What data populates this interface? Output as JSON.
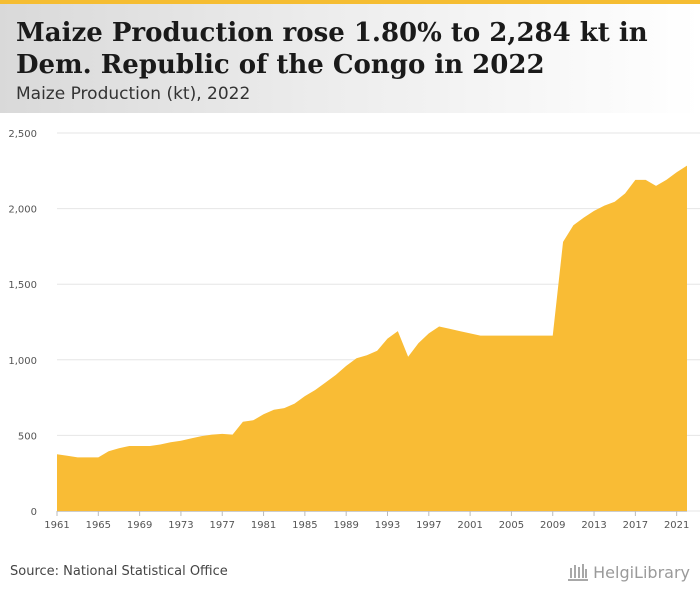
{
  "header": {
    "title": "Maize Production rose 1.80% to 2,284 kt in Dem. Republic of the Congo in 2022",
    "subtitle": "Maize Production (kt), 2022"
  },
  "footer": {
    "source": "Source: National Statistical Office",
    "brand": "HelgiLibrary"
  },
  "colors": {
    "area": "#f9bc35",
    "grid": "#e6e6e6",
    "axis_text": "#555555",
    "accent_bar": "#f5bd32"
  },
  "chart_data": {
    "type": "area",
    "title": "Maize Production rose 1.80% to 2,284 kt in Dem. Republic of the Congo in 2022",
    "subtitle": "Maize Production (kt), 2022",
    "xlabel": "",
    "ylabel": "",
    "ylim": [
      0,
      2500
    ],
    "yticks": [
      0,
      500,
      1000,
      1500,
      2000,
      2500
    ],
    "ytick_labels": [
      "0",
      "500",
      "1,000",
      "1,500",
      "2,000",
      "2,500"
    ],
    "xlim": [
      1961,
      2022
    ],
    "xticks": [
      1961,
      1965,
      1969,
      1973,
      1977,
      1981,
      1985,
      1989,
      1993,
      1997,
      2001,
      2005,
      2009,
      2013,
      2017,
      2021
    ],
    "xtick_labels": [
      "1961",
      "1965",
      "1969",
      "1973",
      "1977",
      "1981",
      "1985",
      "1989",
      "1993",
      "1997",
      "2001",
      "2005",
      "2009",
      "2013",
      "2017",
      "2021"
    ],
    "grid": true,
    "legend": "none",
    "series": [
      {
        "x": [
          1961,
          1962,
          1963,
          1964,
          1965,
          1966,
          1967,
          1968,
          1969,
          1970,
          1971,
          1972,
          1973,
          1974,
          1975,
          1976,
          1977,
          1978,
          1979,
          1980,
          1981,
          1982,
          1983,
          1984,
          1985,
          1986,
          1987,
          1988,
          1989,
          1990,
          1991,
          1992,
          1993,
          1994,
          1995,
          1996,
          1997,
          1998,
          1999,
          2000,
          2001,
          2002,
          2003,
          2004,
          2005,
          2006,
          2007,
          2008,
          2009,
          2010,
          2011,
          2012,
          2013,
          2014,
          2015,
          2016,
          2017,
          2018,
          2019,
          2020,
          2021,
          2022
        ],
        "values": [
          375,
          365,
          355,
          355,
          355,
          395,
          415,
          430,
          430,
          430,
          440,
          455,
          465,
          480,
          495,
          505,
          510,
          505,
          590,
          600,
          640,
          670,
          680,
          710,
          760,
          800,
          850,
          900,
          960,
          1010,
          1030,
          1060,
          1140,
          1190,
          1020,
          1110,
          1175,
          1220,
          1205,
          1190,
          1175,
          1160,
          1160,
          1160,
          1160,
          1160,
          1160,
          1160,
          1160,
          1780,
          1890,
          1940,
          1985,
          2020,
          2045,
          2100,
          2190,
          2190,
          2150,
          2190,
          2240,
          2284
        ]
      }
    ]
  }
}
